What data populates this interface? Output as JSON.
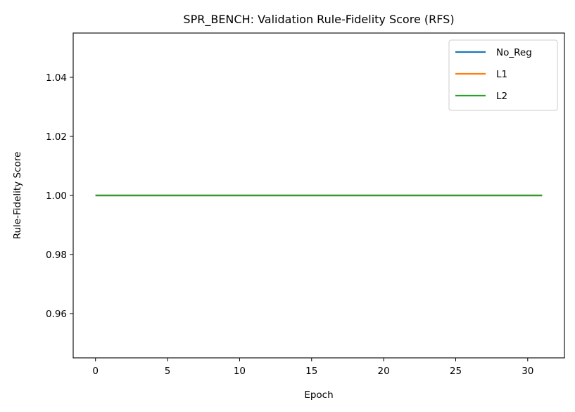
{
  "chart_data": {
    "type": "line",
    "title": "SPR_BENCH: Validation Rule-Fidelity Score (RFS)",
    "xlabel": "Epoch",
    "ylabel": "Rule-Fidelity Score",
    "xlim": [
      -1.55,
      32.55
    ],
    "ylim": [
      0.945,
      1.055
    ],
    "xticks": [
      0,
      5,
      10,
      15,
      20,
      25,
      30
    ],
    "yticks": [
      0.96,
      0.98,
      1.0,
      1.02,
      1.04
    ],
    "ytick_labels": [
      "0.96",
      "0.98",
      "1.00",
      "1.02",
      "1.04"
    ],
    "x": [
      0,
      1,
      2,
      3,
      4,
      5,
      6,
      7,
      8,
      9,
      10,
      11,
      12,
      13,
      14,
      15,
      16,
      17,
      18,
      19,
      20,
      21,
      22,
      23,
      24,
      25,
      26,
      27,
      28,
      29,
      30,
      31
    ],
    "series": [
      {
        "name": "No_Reg",
        "color": "#1f77b4",
        "values": [
          1,
          1,
          1,
          1,
          1,
          1,
          1,
          1,
          1,
          1,
          1,
          1,
          1,
          1,
          1,
          1,
          1,
          1,
          1,
          1,
          1,
          1,
          1,
          1,
          1,
          1,
          1,
          1,
          1,
          1,
          1,
          1
        ]
      },
      {
        "name": "L1",
        "color": "#ff7f0e",
        "values": [
          1,
          1,
          1,
          1,
          1,
          1,
          1,
          1,
          1,
          1,
          1,
          1,
          1,
          1,
          1,
          1,
          1,
          1,
          1,
          1,
          1,
          1,
          1,
          1,
          1,
          1,
          1,
          1,
          1,
          1,
          1,
          1
        ]
      },
      {
        "name": "L2",
        "color": "#2ca02c",
        "values": [
          1,
          1,
          1,
          1,
          1,
          1,
          1,
          1,
          1,
          1,
          1,
          1,
          1,
          1,
          1,
          1,
          1,
          1,
          1,
          1,
          1,
          1,
          1,
          1,
          1,
          1,
          1,
          1,
          1,
          1,
          1,
          1
        ]
      }
    ],
    "grid": false,
    "legend_position": "top-right"
  }
}
